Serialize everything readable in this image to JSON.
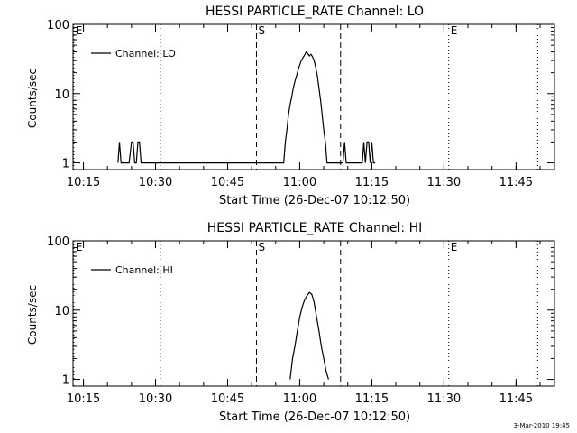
{
  "page": {
    "footer_timestamp": "3-Mar-2010 19:45",
    "background": "#ffffff",
    "ink_color": "#000000"
  },
  "chart_data": [
    {
      "type": "line",
      "title": "HESSI PARTICLE_RATE Channel: LO",
      "xlabel": "Start Time (26-Dec-07 10:12:50)",
      "ylabel": "Counts/sec",
      "y_scale": "log",
      "ylim": [
        0.8,
        100
      ],
      "yticks": [
        1,
        10,
        100
      ],
      "ytick_labels": [
        "1",
        "10",
        "100"
      ],
      "xlim": [
        "10:12:50",
        "11:53:00"
      ],
      "xticks": [
        "10:15",
        "10:30",
        "10:45",
        "11:00",
        "11:15",
        "11:30",
        "11:45"
      ],
      "grid": false,
      "legend": {
        "label": "Channel: LO",
        "location": "top-left"
      },
      "markers": [
        {
          "label": "E",
          "time": "10:13:00",
          "style": "dotted",
          "side": "right"
        },
        {
          "label": "",
          "time": "10:31:00",
          "style": "dotted"
        },
        {
          "label": "S",
          "time": "10:51:00",
          "style": "dashed",
          "side": "right"
        },
        {
          "label": "",
          "time": "11:08:30",
          "style": "dashed"
        },
        {
          "label": "E",
          "time": "11:31:00",
          "style": "dotted",
          "side": "right"
        },
        {
          "label": "",
          "time": "11:49:30",
          "style": "dotted"
        }
      ],
      "series": [
        {
          "x": [
            "10:22:10",
            "10:22:30",
            "10:22:50",
            "10:24:30",
            "10:25:00",
            "10:25:20",
            "10:25:40",
            "10:26:00",
            "10:26:20",
            "10:26:40",
            "10:27:00",
            "10:27:20",
            "10:56:40",
            "10:57:00",
            "10:57:20",
            "10:57:40",
            "10:58:00",
            "10:58:20",
            "10:58:40",
            "10:59:00",
            "10:59:20",
            "10:59:40",
            "11:00:00",
            "11:00:20",
            "11:00:40",
            "11:01:00",
            "11:01:20",
            "11:01:40",
            "11:02:00",
            "11:02:20",
            "11:02:40",
            "11:03:00",
            "11:03:20",
            "11:03:40",
            "11:04:00",
            "11:04:20",
            "11:04:40",
            "11:05:00",
            "11:05:20",
            "11:05:40",
            "11:06:00",
            "11:06:20",
            "11:06:40",
            "11:07:00",
            "11:09:00",
            "11:09:20",
            "11:09:40",
            "11:13:00",
            "11:13:20",
            "11:13:40",
            "11:14:00",
            "11:14:20",
            "11:14:40",
            "11:15:00",
            "11:15:20",
            "11:15:40"
          ],
          "y": [
            1,
            2,
            1,
            1,
            2,
            2,
            1,
            1,
            2,
            2,
            1,
            1,
            1,
            2,
            3,
            5,
            7,
            9,
            12,
            15,
            18,
            22,
            26,
            30,
            33,
            36,
            40,
            38,
            35,
            37,
            34,
            30,
            24,
            18,
            12,
            8,
            5,
            3,
            2,
            1,
            1,
            1,
            1,
            1,
            1,
            2,
            1,
            1,
            2,
            1,
            2,
            2,
            1,
            2,
            1,
            1
          ]
        }
      ]
    },
    {
      "type": "line",
      "title": "HESSI PARTICLE_RATE Channel: HI",
      "xlabel": "Start Time (26-Dec-07 10:12:50)",
      "ylabel": "Counts/sec",
      "y_scale": "log",
      "ylim": [
        0.8,
        100
      ],
      "yticks": [
        1,
        10,
        100
      ],
      "ytick_labels": [
        "1",
        "10",
        "100"
      ],
      "xlim": [
        "10:12:50",
        "11:53:00"
      ],
      "xticks": [
        "10:15",
        "10:30",
        "10:45",
        "11:00",
        "11:15",
        "11:30",
        "11:45"
      ],
      "grid": false,
      "legend": {
        "label": "Channel: HI",
        "location": "top-left"
      },
      "markers": [
        {
          "label": "E",
          "time": "10:13:00",
          "style": "dotted",
          "side": "right"
        },
        {
          "label": "",
          "time": "10:31:00",
          "style": "dotted"
        },
        {
          "label": "S",
          "time": "10:51:00",
          "style": "dashed",
          "side": "right"
        },
        {
          "label": "",
          "time": "11:08:30",
          "style": "dashed"
        },
        {
          "label": "E",
          "time": "11:31:00",
          "style": "dotted",
          "side": "right"
        },
        {
          "label": "",
          "time": "11:49:30",
          "style": "dotted"
        }
      ],
      "series": [
        {
          "x": [
            "10:58:00",
            "10:58:30",
            "10:59:00",
            "10:59:30",
            "11:00:00",
            "11:00:30",
            "11:01:00",
            "11:01:30",
            "11:02:00",
            "11:02:30",
            "11:03:00",
            "11:03:30",
            "11:04:00",
            "11:04:30",
            "11:05:00",
            "11:05:30",
            "11:06:00"
          ],
          "y": [
            1,
            2,
            3,
            5,
            8,
            11,
            14,
            16,
            18,
            17,
            13,
            8,
            5,
            3,
            2,
            1.3,
            1
          ]
        }
      ]
    }
  ]
}
